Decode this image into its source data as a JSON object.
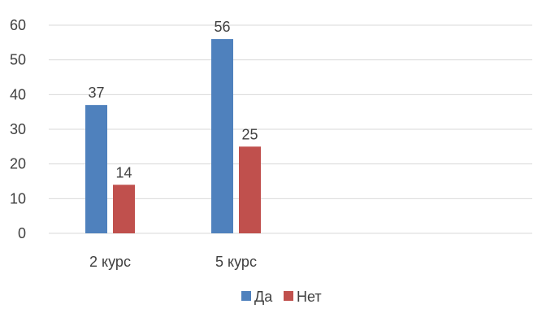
{
  "chart_data": {
    "type": "bar",
    "categories": [
      "2 курс",
      "5 курс"
    ],
    "series": [
      {
        "name": "Да",
        "values": [
          37,
          56
        ],
        "color": "#4F81BD"
      },
      {
        "name": "Нет",
        "values": [
          14,
          25
        ],
        "color": "#C0504D"
      }
    ],
    "ylim": [
      0,
      60
    ],
    "yticks": [
      0,
      10,
      20,
      30,
      40,
      50,
      60
    ],
    "grid": true,
    "legend_position": "bottom",
    "title": "",
    "xlabel": "",
    "ylabel": ""
  }
}
